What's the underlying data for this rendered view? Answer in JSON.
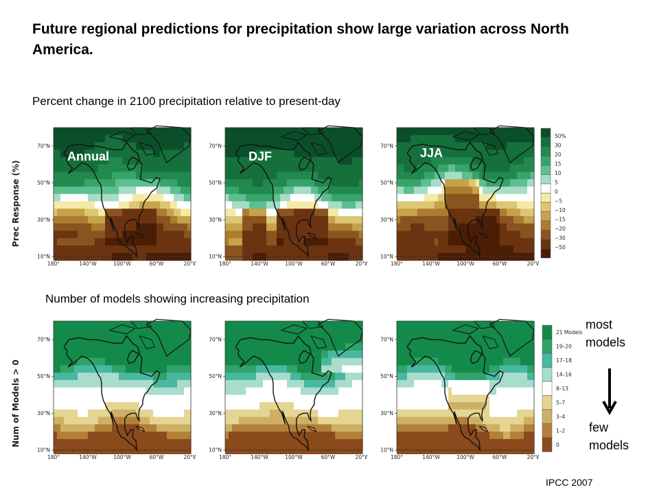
{
  "title": "Future regional predictions for precipitation show large variation across North America.",
  "top_subtitle": "Percent change in 2100 precipitation relative to present-day",
  "bottom_subtitle": "Number of models showing increasing precipitation",
  "top_ylabel": "Prec Response (%)",
  "bottom_ylabel": "Num of Models > 0",
  "seasons": [
    "Annual",
    "DJF",
    "JJA"
  ],
  "lat_ticks": [
    "70°N",
    "50°N",
    "30°N",
    "10°N"
  ],
  "lon_ticks": [
    "180°",
    "140°W",
    "100°W",
    "60°W",
    "20°W"
  ],
  "prec_legend": {
    "labels": [
      "50%",
      "30",
      "20",
      "15",
      "10",
      "5",
      "0",
      "−5",
      "−10",
      "−15",
      "−20",
      "−30",
      "−50"
    ],
    "colors": [
      "#0b4f2a",
      "#16703c",
      "#22894e",
      "#37a46a",
      "#5cbf8f",
      "#a6dcc8",
      "#ffffff",
      "#f4eaa6",
      "#ddc673",
      "#c6a24a",
      "#ab7c2f",
      "#8a5420",
      "#6b3310",
      "#4a1d05"
    ]
  },
  "models_legend": {
    "labels": [
      "21 Models",
      "19–20",
      "17–18",
      "14–16",
      "8–13",
      "5–7",
      "3–4",
      "1–2",
      "0"
    ],
    "colors": [
      "#148a4a",
      "#2fa36a",
      "#48b8a0",
      "#a8dccd",
      "#ffffff",
      "#e4d592",
      "#cdb064",
      "#b3803a",
      "#8a4a1c"
    ]
  },
  "annotation": {
    "most": "most",
    "most2": "models",
    "few": "few",
    "few2": "models"
  },
  "credit": "IPCC 2007"
}
